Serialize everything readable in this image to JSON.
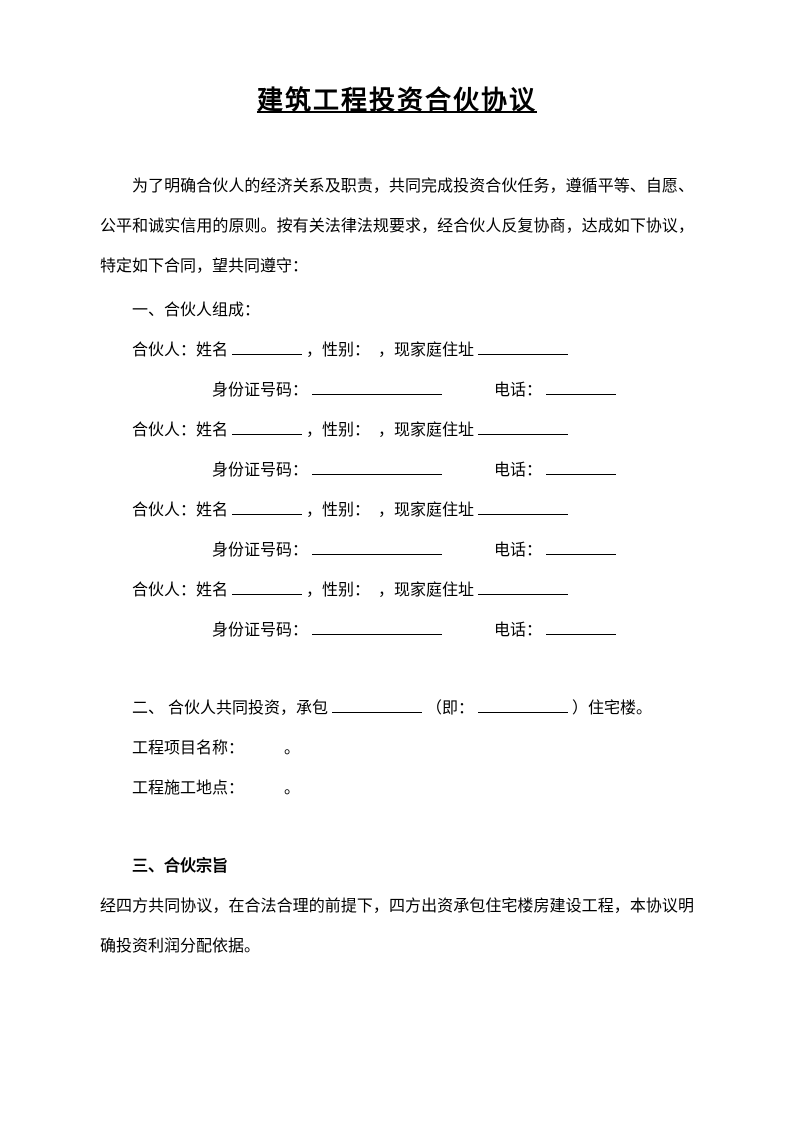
{
  "title": "建筑工程投资合伙协议",
  "intro": "为了明确合伙人的经济关系及职责，共同完成投资合伙任务，遵循平等、自愿、公平和诚实信用的原则。按有关法律法规要求，经合伙人反复协商，达成如下协议，特定如下合同，望共同遵守：",
  "section1": {
    "header": "一、合伙人组成：",
    "partner_label": "合伙人：姓名",
    "gender_label": "，性别：",
    "address_label": "，现家庭住址",
    "id_label": "身份证号码：",
    "phone_label": "电话："
  },
  "section2": {
    "line1_a": "二、 合伙人共同投资，承包",
    "line1_b": "（即：",
    "line1_c": "）住宅楼。",
    "project_name": "工程项目名称：",
    "project_loc": "工程施工地点：",
    "period": "。"
  },
  "section3": {
    "header": "三、合伙宗旨",
    "body": "经四方共同协议，在合法合理的前提下，四方出资承包住宅楼房建设工程，本协议明确投资利润分配依据。"
  }
}
